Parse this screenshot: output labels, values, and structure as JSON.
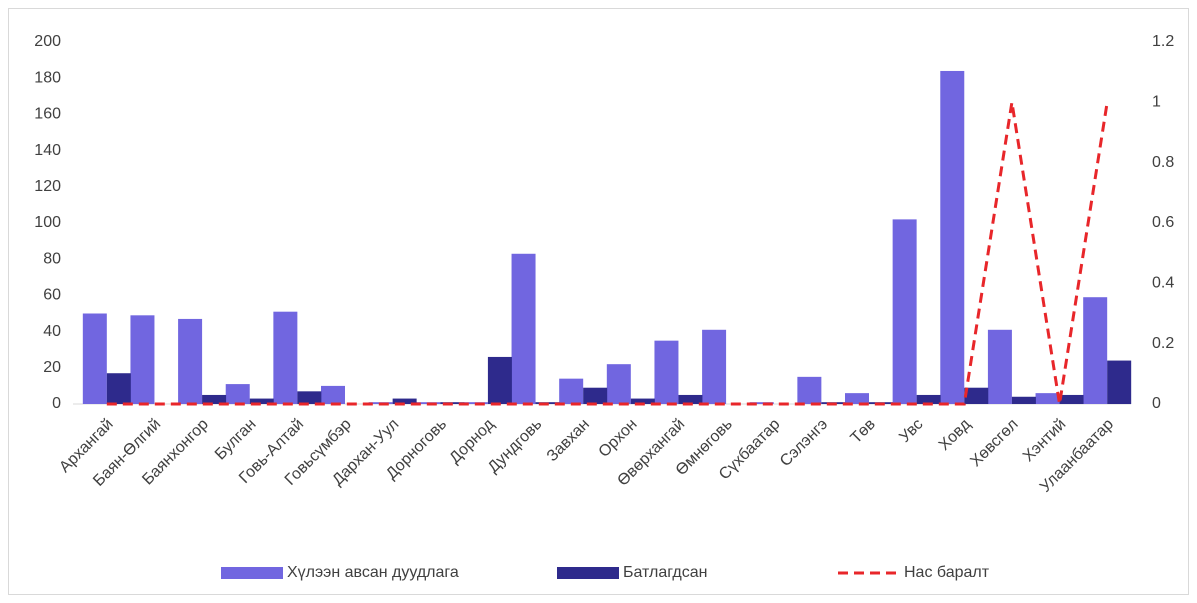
{
  "chart_data": {
    "type": "bar",
    "categories": [
      "Архангай",
      "Баян-Өлгий",
      "Баянхонгор",
      "Булган",
      "Говь-Алтай",
      "Говьсүмбэр",
      "Дархан-Уул",
      "Дорноговь",
      "Дорнод",
      "Дундговь",
      "Завхан",
      "Орхон",
      "Өвөрхангай",
      "Өмнөговь",
      "Сүхбаатар",
      "Сэлэнгэ",
      "Төв",
      "Увс",
      "Ховд",
      "Хөвсгөл",
      "Хэнтий",
      "Улаанбаатар"
    ],
    "series": [
      {
        "name": "Хүлээн авсан дуудлага",
        "color": "#7166e0",
        "values": [
          50,
          49,
          47,
          11,
          51,
          10,
          1,
          1,
          1,
          83,
          14,
          22,
          35,
          41,
          1,
          15,
          6,
          102,
          184,
          41,
          6,
          59
        ]
      },
      {
        "name": "Батлагдсан",
        "color": "#2e2a8c",
        "values": [
          17,
          0,
          5,
          3,
          7,
          0,
          3,
          1,
          26,
          1,
          9,
          3,
          5,
          0,
          0,
          1,
          1,
          5,
          9,
          4,
          5,
          24
        ]
      },
      {
        "name": "Нас баралт",
        "color": "#e8262a",
        "type": "line",
        "axis": "y2",
        "values": [
          0,
          0,
          0,
          0,
          0,
          0,
          0,
          0,
          0,
          0,
          0,
          0,
          0,
          0,
          0,
          0,
          0,
          0,
          0,
          1,
          0,
          1
        ]
      }
    ],
    "ylim": [
      0,
      200
    ],
    "yticks": [
      0,
      20,
      40,
      60,
      80,
      100,
      120,
      140,
      160,
      180,
      200
    ],
    "y2lim": [
      0,
      1.2
    ],
    "y2ticks": [
      0,
      0.2,
      0.4,
      0.6,
      0.8,
      1,
      1.2
    ],
    "legend": "bottom"
  }
}
